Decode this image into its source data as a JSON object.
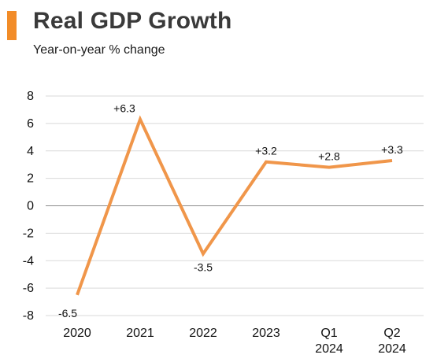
{
  "header": {
    "title": "Real GDP Growth",
    "subtitle": "Year-on-year % change",
    "accent_color": "#f28c28"
  },
  "chart_data": {
    "type": "line",
    "title": "Real GDP Growth",
    "subtitle": "Year-on-year % change",
    "xlabel": "",
    "ylabel": "",
    "categories": [
      [
        "2020"
      ],
      [
        "2021"
      ],
      [
        "2022"
      ],
      [
        "2023"
      ],
      [
        "Q1",
        "2024"
      ],
      [
        "Q2",
        "2024"
      ]
    ],
    "values": [
      -6.5,
      6.3,
      -3.5,
      3.2,
      2.8,
      3.3
    ],
    "data_labels": [
      "-6.5",
      "+6.3",
      "-3.5",
      "+3.2",
      "+2.8",
      "+3.3"
    ],
    "ylim": [
      -8,
      8
    ],
    "yticks": [
      8,
      6,
      4,
      2,
      0,
      -2,
      -4,
      -6,
      -8
    ],
    "grid": true,
    "line_color": "#f0964a",
    "legend": "none"
  }
}
